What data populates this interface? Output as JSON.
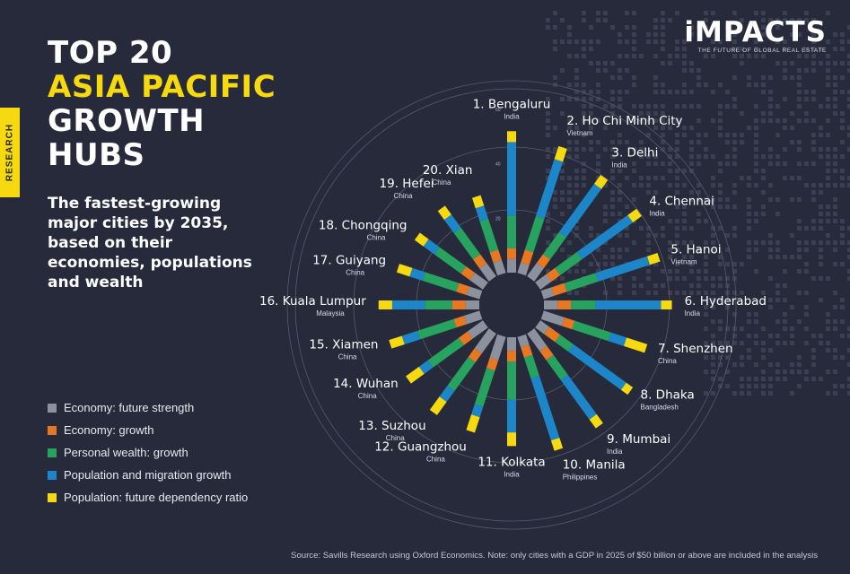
{
  "header": {
    "title_line1": "TOP 20",
    "title_line2": "ASIA PACIFIC",
    "title_line3": "GROWTH",
    "title_line4": "HUBS",
    "side_tab": "RESEARCH",
    "subtitle": "The fastest-growing major cities by 2035, based on their economies, populations and wealth"
  },
  "logo": {
    "name": "iMPACTS",
    "tagline": "THE FUTURE OF GLOBAL REAL ESTATE"
  },
  "footer": {
    "source": "Source: Savills Research using Oxford Economics. Note: only cities with a GDP in 2025 of $50 billion or above are included in the analysis"
  },
  "colors": {
    "background": "#262a3b",
    "accent": "#f6d90e"
  },
  "chart_data": {
    "type": "radial stacked bar",
    "ticks": [
      {
        "value": 20,
        "label": "20"
      },
      {
        "value": 40,
        "label": "40"
      },
      {
        "value": 60,
        "label": "60"
      }
    ],
    "rmax": 60,
    "legend": [
      {
        "name": "Economy: future strength",
        "color": "#8c919e"
      },
      {
        "name": "Economy: growth",
        "color": "#e87722"
      },
      {
        "name": "Personal wealth: growth",
        "color": "#27a35f"
      },
      {
        "name": "Population and migration growth",
        "color": "#1d86c8"
      },
      {
        "name": "Population: future dependency ratio",
        "color": "#f6d90e"
      }
    ],
    "cities": [
      {
        "rank": 1,
        "label": "1. Bengaluru",
        "country": "India",
        "values": [
          5,
          4,
          12,
          27,
          4
        ]
      },
      {
        "rank": 2,
        "label": "2. Ho Chi Minh City",
        "country": "Vietnam",
        "values": [
          4,
          5,
          13,
          22,
          5
        ]
      },
      {
        "rank": 3,
        "label": "3. Delhi",
        "country": "India",
        "values": [
          6,
          4,
          10,
          22,
          4
        ]
      },
      {
        "rank": 4,
        "label": "4. Chennai",
        "country": "India",
        "values": [
          5,
          4,
          10,
          23,
          4
        ]
      },
      {
        "rank": 5,
        "label": "5. Hanoi",
        "country": "Vietnam",
        "values": [
          4,
          5,
          12,
          20,
          4
        ]
      },
      {
        "rank": 6,
        "label": "6. Hyderabad",
        "country": "India",
        "values": [
          5,
          5,
          9,
          24,
          4
        ]
      },
      {
        "rank": 7,
        "label": "7. Shenzhen",
        "country": "China",
        "values": [
          8,
          4,
          14,
          6,
          8
        ]
      },
      {
        "rank": 8,
        "label": "8. Dhaka",
        "country": "Bangladesh",
        "values": [
          4,
          5,
          6,
          24,
          3
        ]
      },
      {
        "rank": 9,
        "label": "9. Mumbai",
        "country": "India",
        "values": [
          8,
          4,
          9,
          18,
          4
        ]
      },
      {
        "rank": 10,
        "label": "10. Manila",
        "country": "Philippines",
        "values": [
          4,
          4,
          8,
          24,
          4
        ]
      },
      {
        "rank": 11,
        "label": "11. Kolkata",
        "country": "India",
        "values": [
          5,
          4,
          14,
          12,
          5
        ]
      },
      {
        "rank": 12,
        "label": "12. Guangzhou",
        "country": "China",
        "values": [
          9,
          4,
          14,
          4,
          6
        ]
      },
      {
        "rank": 13,
        "label": "13. Suzhou",
        "country": "China",
        "values": [
          9,
          4,
          13,
          5,
          6
        ]
      },
      {
        "rank": 14,
        "label": "14. Wuhan",
        "country": "China",
        "values": [
          7,
          4,
          14,
          4,
          6
        ]
      },
      {
        "rank": 15,
        "label": "15. Xiamen",
        "country": "China",
        "values": [
          6,
          4,
          14,
          6,
          5
        ]
      },
      {
        "rank": 16,
        "label": "16. Kuala Lumpur",
        "country": "Malaysia",
        "values": [
          5,
          5,
          10,
          12,
          5
        ]
      },
      {
        "rank": 17,
        "label": "17. Guiyang",
        "country": "China",
        "values": [
          5,
          4,
          13,
          5,
          5
        ]
      },
      {
        "rank": 18,
        "label": "18. Chongqing",
        "country": "China",
        "values": [
          6,
          4,
          12,
          5,
          4
        ]
      },
      {
        "rank": 19,
        "label": "19. Hefei",
        "country": "China",
        "values": [
          6,
          4,
          12,
          6,
          4
        ]
      },
      {
        "rank": 20,
        "label": "20. Xian",
        "country": "China",
        "values": [
          5,
          4,
          12,
          5,
          4
        ]
      }
    ]
  }
}
